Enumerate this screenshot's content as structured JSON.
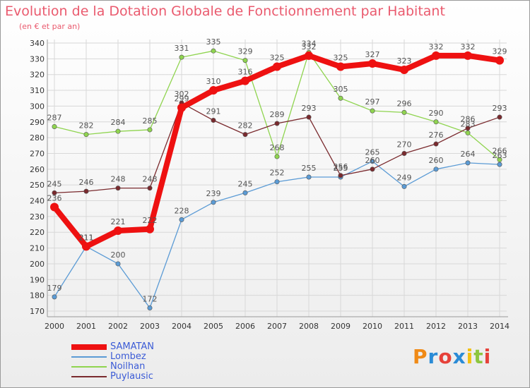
{
  "title": "Evolution de la Dotation Globale de Fonctionnement par Habitant",
  "subtitle": "(en € et par an)",
  "logo_text": "Proxiti",
  "logo_colors": [
    "#f08a16",
    "#2a8bd6",
    "#e6413a",
    "#2a8bd6",
    "#f2c012",
    "#8dc63f",
    "#e6413a"
  ],
  "chart_data": {
    "type": "line",
    "x": [
      2000,
      2001,
      2002,
      2003,
      2004,
      2005,
      2006,
      2007,
      2008,
      2009,
      2010,
      2011,
      2012,
      2013,
      2014
    ],
    "ylim": [
      170,
      340
    ],
    "yticks": [
      170,
      180,
      190,
      200,
      210,
      220,
      230,
      240,
      250,
      260,
      270,
      280,
      290,
      300,
      310,
      320,
      330,
      340
    ],
    "grid": true,
    "legend_position": "bottom-left",
    "series": [
      {
        "name": "Lombez",
        "color": "#5b9bd5",
        "values": [
          179,
          211,
          200,
          172,
          228,
          239,
          245,
          252,
          255,
          255,
          265,
          249,
          260,
          264,
          263
        ]
      },
      {
        "name": "Noilhan",
        "color": "#8fd44f",
        "values": [
          287,
          282,
          284,
          285,
          331,
          335,
          329,
          268,
          334,
          305,
          297,
          296,
          290,
          283,
          266
        ]
      },
      {
        "name": "Puylausic",
        "color": "#7a2a2e",
        "values": [
          245,
          246,
          248,
          248,
          302,
          291,
          282,
          289,
          293,
          256,
          260,
          270,
          276,
          286,
          293
        ]
      },
      {
        "name": "SAMATAN",
        "color": "#ee1111",
        "values": [
          236,
          211,
          221,
          222,
          299,
          310,
          316,
          325,
          332,
          325,
          327,
          323,
          332,
          332,
          329
        ]
      }
    ]
  }
}
